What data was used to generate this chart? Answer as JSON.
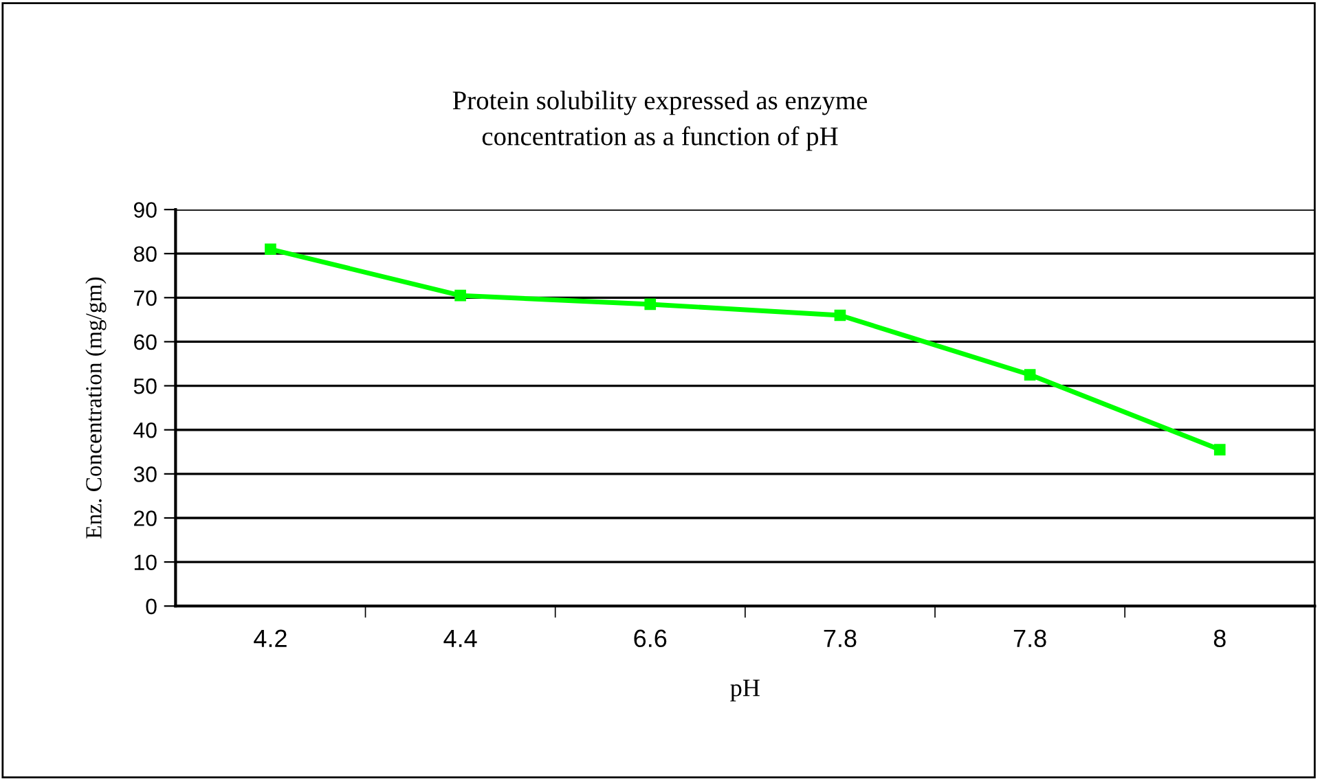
{
  "chart_data": {
    "type": "line",
    "title": "Protein solubility expressed as enzyme\nconcentration as a function of pH",
    "xlabel": "pH",
    "ylabel": "Enz. Concentration (mg/gm)",
    "categories": [
      "4.2",
      "4.4",
      "6.6",
      "7.8",
      "7.8",
      "8"
    ],
    "series": [
      {
        "color": "#00ff00",
        "values": [
          81,
          70.5,
          68.5,
          66,
          52.5,
          35.5
        ]
      }
    ],
    "ylim": [
      0,
      90
    ],
    "yticks": [
      0,
      10,
      20,
      30,
      40,
      50,
      60,
      70,
      80,
      90
    ],
    "grid": "y",
    "legend": false,
    "marker": "square",
    "line_style": "solid"
  }
}
